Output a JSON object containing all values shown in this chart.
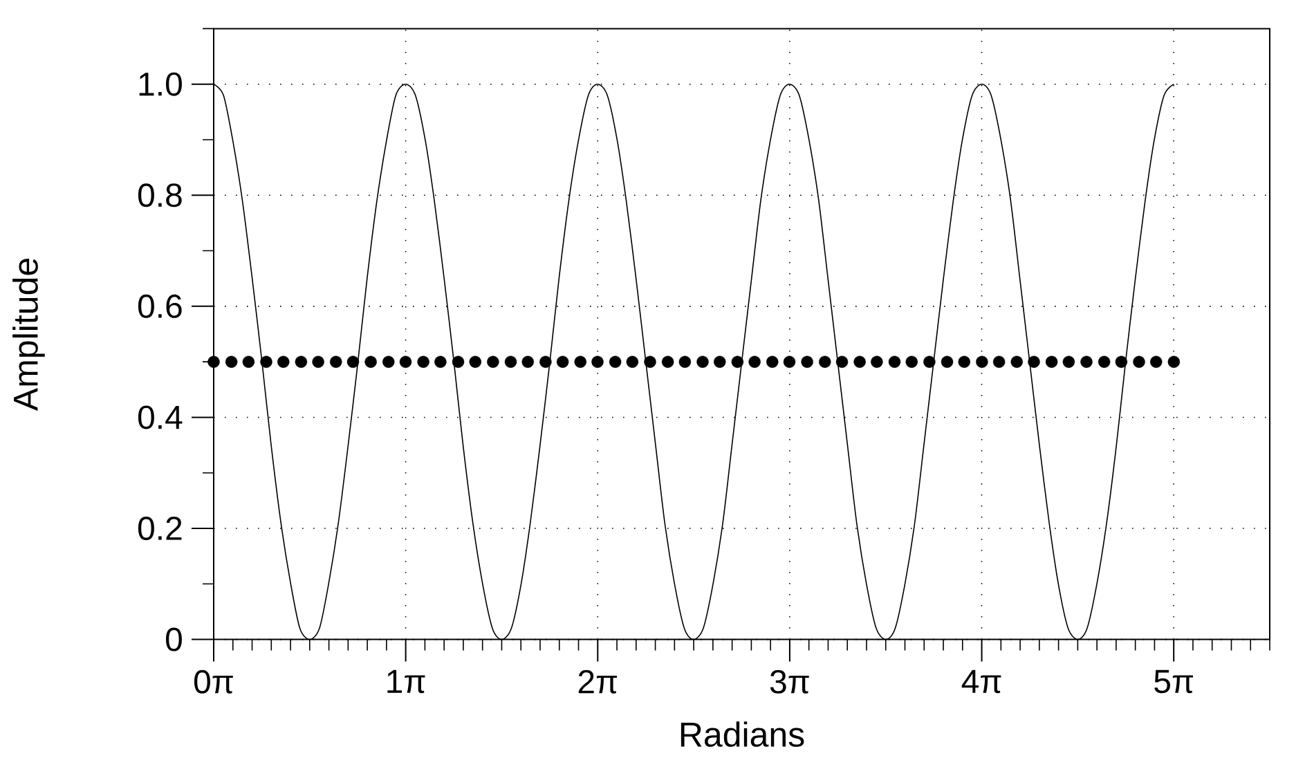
{
  "chart_data": {
    "type": "line",
    "xlabel": "Radians",
    "ylabel": "Amplitude",
    "xlim": [
      0,
      17.2788
    ],
    "ylim": [
      0,
      1.1
    ],
    "grid": true,
    "xticks": [
      {
        "value": 0,
        "label": "0π"
      },
      {
        "value": 0.3142,
        "label": null
      },
      {
        "value": 0.6283,
        "label": null
      },
      {
        "value": 0.9425,
        "label": null
      },
      {
        "value": 1.2566,
        "label": null
      },
      {
        "value": 1.5708,
        "label": null
      },
      {
        "value": 1.885,
        "label": null
      },
      {
        "value": 2.1991,
        "label": null
      },
      {
        "value": 2.5133,
        "label": null
      },
      {
        "value": 2.8274,
        "label": null
      },
      {
        "value": 3.1416,
        "label": "1π"
      },
      {
        "value": 3.4558,
        "label": null
      },
      {
        "value": 3.7699,
        "label": null
      },
      {
        "value": 4.0841,
        "label": null
      },
      {
        "value": 4.3982,
        "label": null
      },
      {
        "value": 4.7124,
        "label": null
      },
      {
        "value": 5.0265,
        "label": null
      },
      {
        "value": 5.3407,
        "label": null
      },
      {
        "value": 5.6549,
        "label": null
      },
      {
        "value": 5.969,
        "label": null
      },
      {
        "value": 6.2832,
        "label": "2π"
      },
      {
        "value": 6.5973,
        "label": null
      },
      {
        "value": 6.9115,
        "label": null
      },
      {
        "value": 7.2257,
        "label": null
      },
      {
        "value": 7.5398,
        "label": null
      },
      {
        "value": 7.854,
        "label": null
      },
      {
        "value": 8.1681,
        "label": null
      },
      {
        "value": 8.4823,
        "label": null
      },
      {
        "value": 8.7965,
        "label": null
      },
      {
        "value": 9.1106,
        "label": null
      },
      {
        "value": 9.4248,
        "label": "3π"
      },
      {
        "value": 9.7389,
        "label": null
      },
      {
        "value": 10.0531,
        "label": null
      },
      {
        "value": 10.3673,
        "label": null
      },
      {
        "value": 10.6814,
        "label": null
      },
      {
        "value": 10.9956,
        "label": null
      },
      {
        "value": 11.3097,
        "label": null
      },
      {
        "value": 11.6239,
        "label": null
      },
      {
        "value": 11.9381,
        "label": null
      },
      {
        "value": 12.2522,
        "label": null
      },
      {
        "value": 12.5664,
        "label": "4π"
      },
      {
        "value": 12.8805,
        "label": null
      },
      {
        "value": 13.1947,
        "label": null
      },
      {
        "value": 13.5088,
        "label": null
      },
      {
        "value": 13.823,
        "label": null
      },
      {
        "value": 14.1372,
        "label": null
      },
      {
        "value": 14.4513,
        "label": null
      },
      {
        "value": 14.7655,
        "label": null
      },
      {
        "value": 15.0796,
        "label": null
      },
      {
        "value": 15.3938,
        "label": null
      },
      {
        "value": 15.708,
        "label": "5π"
      },
      {
        "value": 16.0221,
        "label": null
      },
      {
        "value": 16.3363,
        "label": null
      },
      {
        "value": 16.6504,
        "label": null
      },
      {
        "value": 16.9646,
        "label": null
      },
      {
        "value": 17.2788,
        "label": null
      }
    ],
    "yticks": [
      0,
      {
        "value": 0.1,
        "label": null
      },
      0.2,
      {
        "value": 0.3,
        "label": null
      },
      0.4,
      {
        "value": 0.5,
        "label": null
      },
      0.6,
      {
        "value": 0.7,
        "label": null
      },
      0.8,
      {
        "value": 0.9,
        "label": null
      },
      {
        "value": 1,
        "label": "1.0"
      },
      {
        "value": 1.1,
        "label": null
      }
    ],
    "series": [
      {
        "color": "#000000",
        "marker": "none",
        "line_style": "solid",
        "x": [
          0,
          0.16,
          0.31,
          0.47,
          0.63,
          0.79,
          0.94,
          1.1,
          1.26,
          1.41,
          1.57,
          1.73,
          1.88,
          2.04,
          2.2,
          2.36,
          2.51,
          2.67,
          2.83,
          2.98,
          3.14,
          3.3,
          3.46,
          3.61,
          3.77,
          3.93,
          4.08,
          4.24,
          4.4,
          4.56,
          4.71,
          4.87,
          5.03,
          5.18,
          5.34,
          5.5,
          5.65,
          5.81,
          5.97,
          6.13,
          6.28,
          6.44,
          6.6,
          6.75,
          6.91,
          7.07,
          7.23,
          7.38,
          7.54,
          7.7,
          7.85,
          8.01,
          8.17,
          8.33,
          8.48,
          8.64,
          8.8,
          8.95,
          9.11,
          9.27,
          9.42,
          9.58,
          9.74,
          9.9,
          10.05,
          10.21,
          10.37,
          10.52,
          10.68,
          10.84,
          11,
          11.15,
          11.31,
          11.47,
          11.62,
          11.78,
          11.94,
          12.1,
          12.25,
          12.41,
          12.57,
          12.72,
          12.88,
          13.04,
          13.19,
          13.35,
          13.51,
          13.67,
          13.82,
          13.98,
          14.14,
          14.29,
          14.45,
          14.61,
          14.77,
          14.92,
          15.08,
          15.24,
          15.39,
          15.55,
          15.71
        ],
        "values": [
          1,
          0.98,
          0.9,
          0.79,
          0.65,
          0.5,
          0.35,
          0.21,
          0.1,
          0.02,
          0,
          0.02,
          0.1,
          0.21,
          0.35,
          0.5,
          0.65,
          0.79,
          0.9,
          0.98,
          1,
          0.98,
          0.9,
          0.79,
          0.65,
          0.5,
          0.35,
          0.21,
          0.1,
          0.02,
          0,
          0.02,
          0.1,
          0.21,
          0.35,
          0.5,
          0.65,
          0.79,
          0.9,
          0.98,
          1,
          0.98,
          0.9,
          0.79,
          0.65,
          0.5,
          0.35,
          0.21,
          0.1,
          0.02,
          0,
          0.02,
          0.1,
          0.21,
          0.35,
          0.5,
          0.65,
          0.79,
          0.9,
          0.98,
          1,
          0.98,
          0.9,
          0.79,
          0.65,
          0.5,
          0.35,
          0.21,
          0.1,
          0.02,
          0,
          0.02,
          0.1,
          0.21,
          0.35,
          0.5,
          0.65,
          0.79,
          0.9,
          0.98,
          1,
          0.98,
          0.9,
          0.79,
          0.65,
          0.5,
          0.35,
          0.21,
          0.1,
          0.02,
          0,
          0.02,
          0.1,
          0.21,
          0.35,
          0.5,
          0.65,
          0.79,
          0.9,
          0.98,
          1
        ]
      },
      {
        "type": "scatter",
        "color": "#000000",
        "marker": "circle",
        "x": [
          0,
          0.29,
          0.57,
          0.86,
          1.14,
          1.43,
          1.71,
          2,
          2.28,
          2.57,
          2.86,
          3.14,
          3.43,
          3.71,
          4,
          4.28,
          4.57,
          4.86,
          5.14,
          5.43,
          5.71,
          6,
          6.28,
          6.57,
          6.85,
          7.14,
          7.43,
          7.71,
          8,
          8.28,
          8.57,
          8.85,
          9.14,
          9.42,
          9.71,
          10,
          10.28,
          10.57,
          10.85,
          11.14,
          11.42,
          11.71,
          12,
          12.28,
          12.57,
          12.85,
          13.14,
          13.42,
          13.71,
          13.99,
          14.28,
          14.57,
          14.85,
          15.14,
          15.42,
          15.71
        ],
        "values": [
          0.5,
          0.5,
          0.5,
          0.5,
          0.5,
          0.5,
          0.5,
          0.5,
          0.5,
          0.5,
          0.5,
          0.5,
          0.5,
          0.5,
          0.5,
          0.5,
          0.5,
          0.5,
          0.5,
          0.5,
          0.5,
          0.5,
          0.5,
          0.5,
          0.5,
          0.5,
          0.5,
          0.5,
          0.5,
          0.5,
          0.5,
          0.5,
          0.5,
          0.5,
          0.5,
          0.5,
          0.5,
          0.5,
          0.5,
          0.5,
          0.5,
          0.5,
          0.5,
          0.5,
          0.5,
          0.5,
          0.5,
          0.5,
          0.5,
          0.5,
          0.5,
          0.5,
          0.5,
          0.5,
          0.5,
          0.5
        ]
      }
    ]
  }
}
